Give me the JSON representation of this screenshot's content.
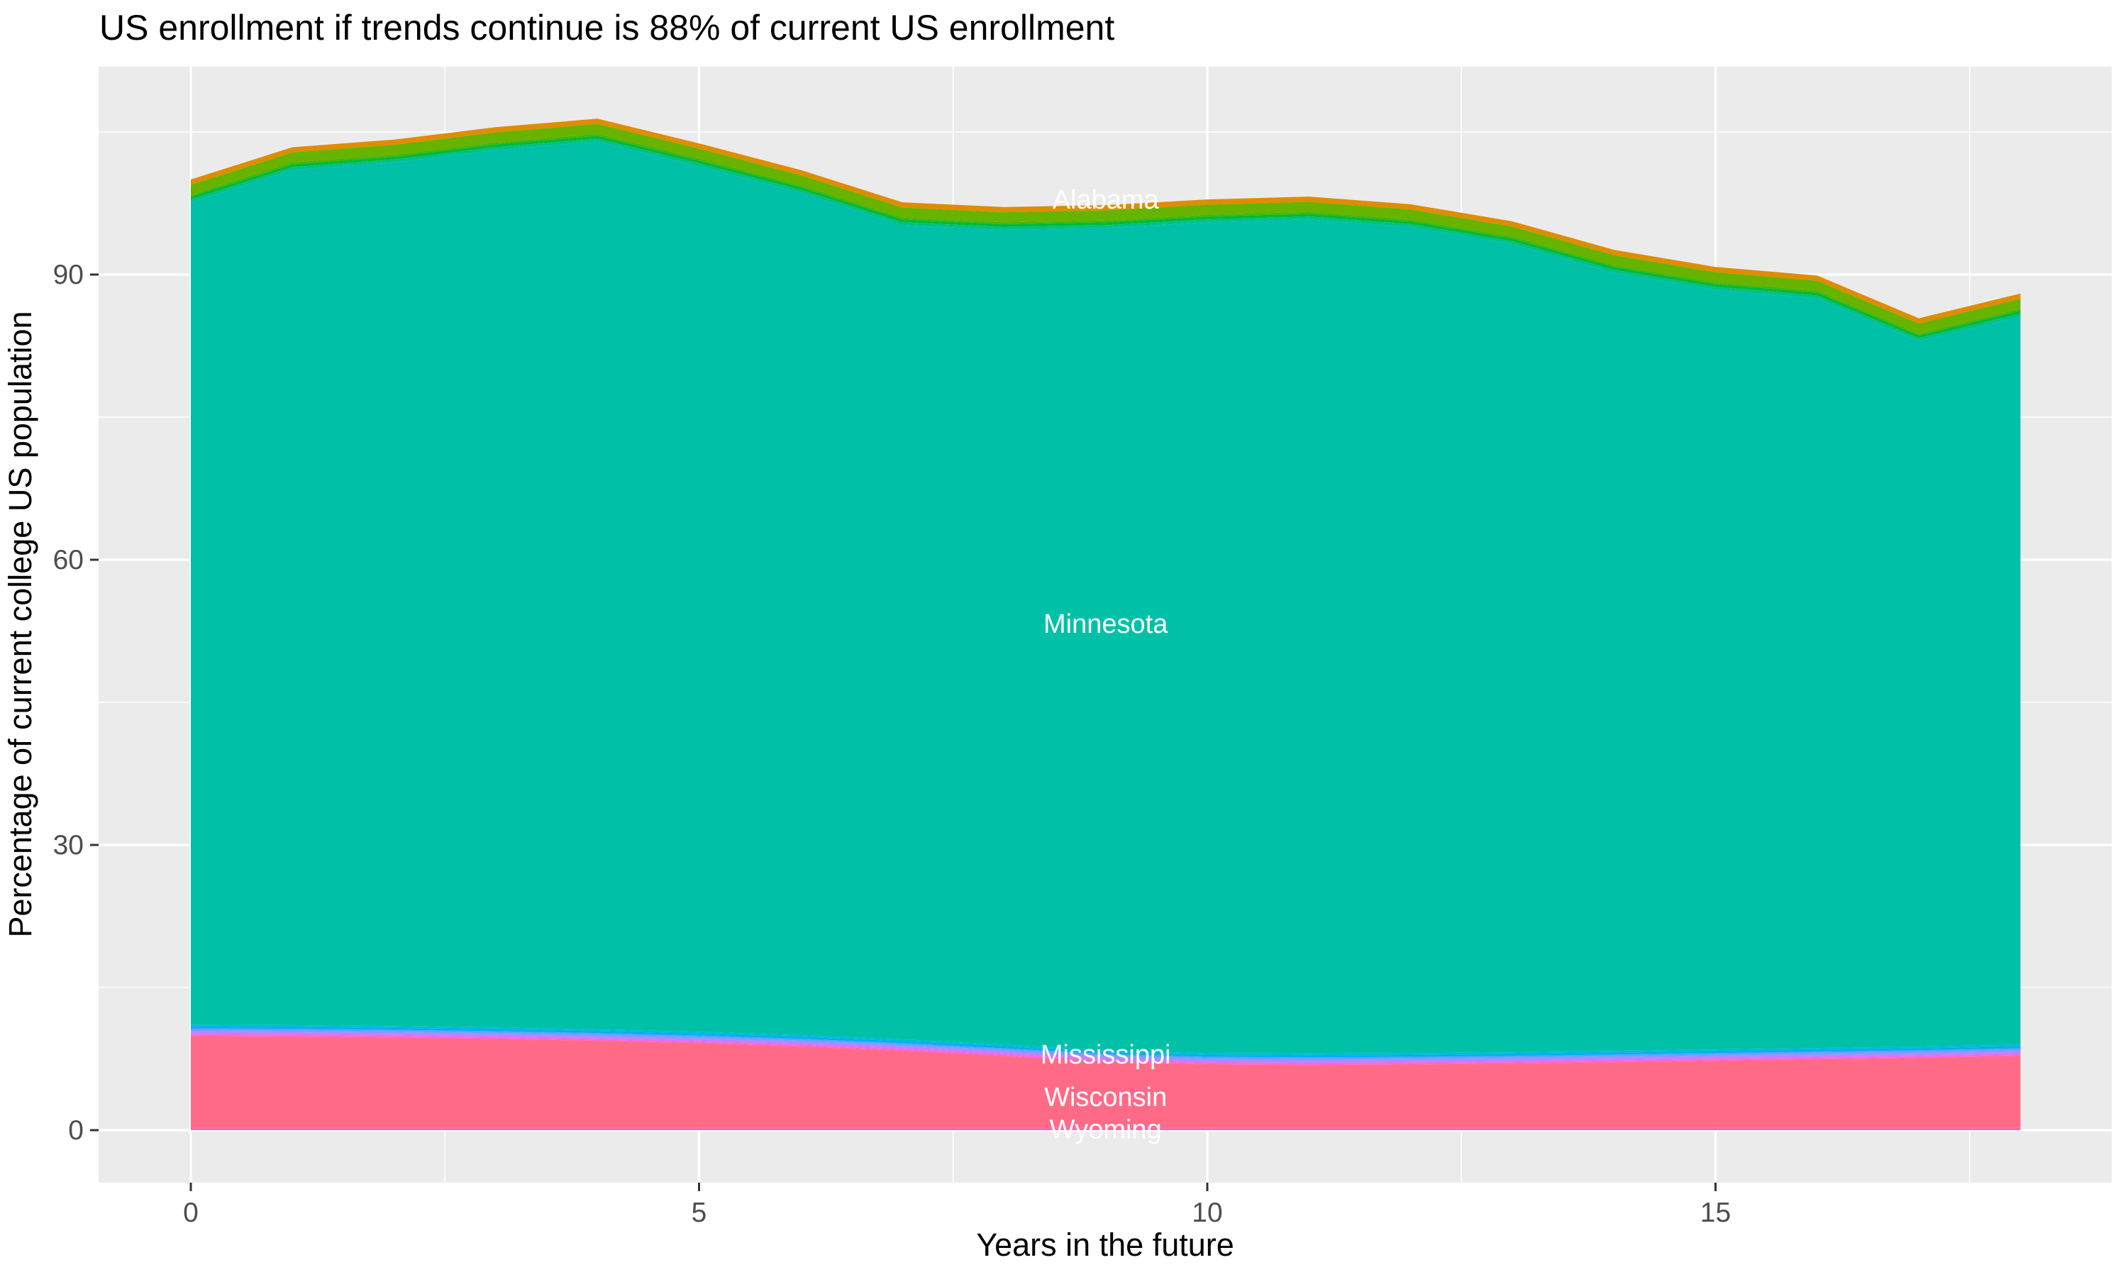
{
  "figure": {
    "title": "US enrollment if trends continue is 88% of current US enrollment",
    "colors": {
      "figure_bg": "#FFFFFF",
      "panel_bg": "#EBEBEB",
      "grid": "#FFFFFF",
      "tick_mark": "#333333",
      "tick_label": "#4D4D4D",
      "title_text": "#000000",
      "axis_title_text": "#000000",
      "area_label_text": "#FFFFFF"
    }
  },
  "chart_data": {
    "type": "area",
    "stacked": true,
    "title": "US enrollment if trends continue is 88% of current US enrollment",
    "xlabel": "Years in the future",
    "ylabel": "Percentage of current college US population",
    "x_ticks": [
      0,
      5,
      10,
      15
    ],
    "x_minor_ticks": [
      2.5,
      7.5,
      12.5,
      17.5
    ],
    "y_ticks": [
      0,
      30,
      60,
      90
    ],
    "y_minor_ticks": [
      15,
      45,
      75,
      105
    ],
    "xlim": [
      -0.9,
      18.9
    ],
    "ylim": [
      -5.5,
      111.9
    ],
    "grid": true,
    "legend": "none",
    "x": [
      0,
      1,
      2,
      3,
      4,
      5,
      6,
      7,
      8,
      9,
      10,
      11,
      12,
      13,
      14,
      15,
      16,
      17,
      18
    ],
    "stack_top_total": [
      100.0,
      103.4,
      104.2,
      105.5,
      106.4,
      103.8,
      101.0,
      97.6,
      97.1,
      97.3,
      97.9,
      98.2,
      97.4,
      95.6,
      92.6,
      90.8,
      89.9,
      85.4,
      88.0
    ],
    "wisconsin_top": [
      9.9,
      9.85,
      9.75,
      9.6,
      9.4,
      9.15,
      8.8,
      8.35,
      7.8,
      7.2,
      6.9,
      6.85,
      6.9,
      7.0,
      7.15,
      7.3,
      7.45,
      7.6,
      7.8
    ],
    "bands_bottom_to_top": [
      {
        "name": "Wyoming",
        "color": "#FF65A8",
        "bottom": 0,
        "top_const": 0.25
      },
      {
        "name": "Wisconsin",
        "color": "#FF6B87",
        "bottom_const": 0.25,
        "top_key": "wisconsin_top"
      },
      {
        "name": "small-states-lower-gradient",
        "slices": [
          {
            "color": "#FF61C7",
            "thickness": 0.12
          },
          {
            "color": "#E76BF3",
            "thickness": 0.15
          },
          {
            "color": "#BC81FF",
            "thickness": 0.18
          },
          {
            "color": "#8F95FF",
            "thickness": 0.18
          },
          {
            "color": "#5BA3FF",
            "thickness": 0.18
          },
          {
            "color": "#00ACFA",
            "thickness": 0.2
          }
        ]
      },
      {
        "name": "Mississippi",
        "color": "#00BCD4",
        "thickness": 0.19
      },
      {
        "name": "Minnesota",
        "color": "#00C1A7",
        "top_offset_from_total": 2.4
      },
      {
        "name": "small-states-upper-gradient",
        "slices": [
          {
            "color": "#00C08B",
            "thickness": 0.3
          },
          {
            "color": "#00BA38",
            "thickness": 0.3
          },
          {
            "color": "#47B600",
            "thickness": 0.2
          }
        ]
      },
      {
        "name": "small-states-green-band",
        "color": "#66B300",
        "thickness": 1.05
      },
      {
        "name": "Alabama",
        "color": "#DE8C00",
        "thickness": 0.55
      }
    ],
    "area_labels": [
      {
        "text": "Alabama",
        "x": 9,
        "y": 97.9
      },
      {
        "text": "Minnesota",
        "x": 9,
        "y": 53.3
      },
      {
        "text": "Mississippi",
        "x": 9,
        "y": 8.0
      },
      {
        "text": "Wisconsin",
        "x": 9,
        "y": 3.5
      },
      {
        "text": "Wyoming",
        "x": 9,
        "y": 0.1
      }
    ]
  }
}
